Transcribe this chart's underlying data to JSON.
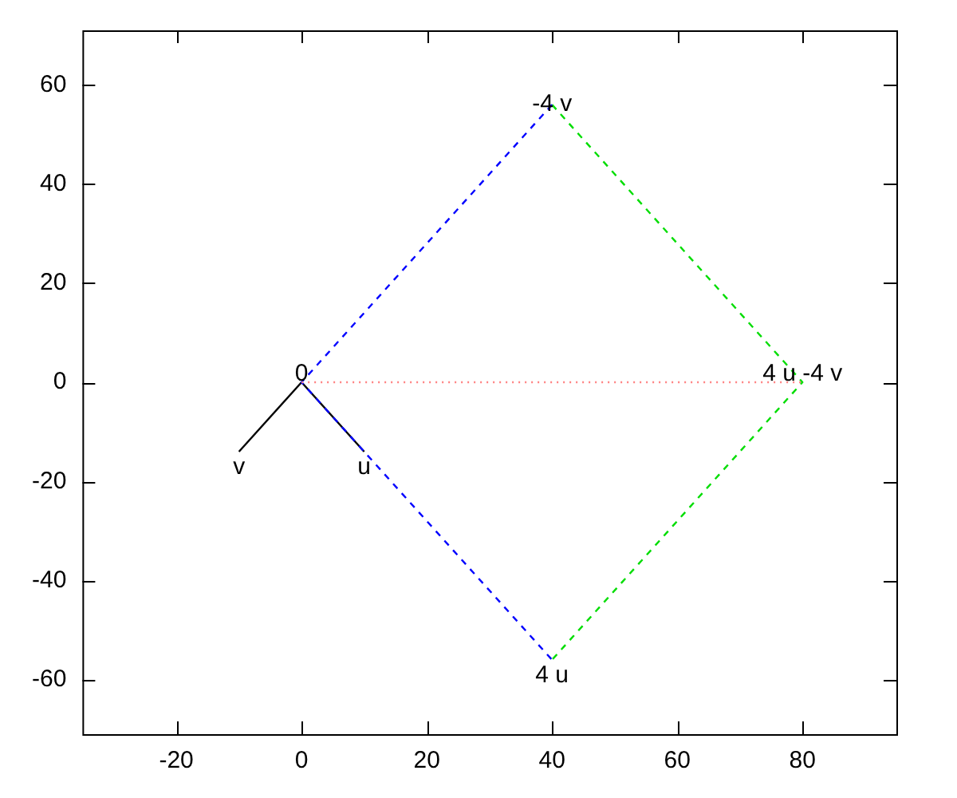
{
  "chart_data": {
    "type": "line",
    "xlim": [
      -35,
      95
    ],
    "ylim": [
      -71,
      71
    ],
    "xticks": [
      -20,
      0,
      20,
      40,
      60,
      80
    ],
    "yticks": [
      -60,
      -40,
      -20,
      0,
      20,
      40,
      60
    ],
    "grid": false,
    "legend": false,
    "marker": "none",
    "series": [
      {
        "x": [
          0,
          80
        ],
        "values": [
          0,
          0
        ],
        "color": "#ff8080",
        "line_style": "dotted"
      },
      {
        "x": [
          40,
          0,
          40
        ],
        "values": [
          56,
          0,
          -56
        ],
        "color": "#0000ff",
        "line_style": "dashed"
      },
      {
        "x": [
          40,
          80,
          40
        ],
        "values": [
          56,
          0,
          -56
        ],
        "color": "#00dd00",
        "line_style": "dashed"
      },
      {
        "x": [
          0,
          10
        ],
        "values": [
          0,
          -14
        ],
        "color": "#000000",
        "line_style": "solid"
      },
      {
        "x": [
          0,
          -10
        ],
        "values": [
          0,
          -14
        ],
        "color": "#000000",
        "line_style": "solid"
      }
    ],
    "annotations": [
      {
        "text": "0",
        "x": 0,
        "y": 0
      },
      {
        "text": "v",
        "x": -10,
        "y": -14
      },
      {
        "text": "u",
        "x": 10,
        "y": -14
      },
      {
        "text": "-4 v",
        "x": 40,
        "y": 56
      },
      {
        "text": "4 u",
        "x": 40,
        "y": -56
      },
      {
        "text": "4 u -4 v",
        "x": 80,
        "y": 0
      }
    ]
  }
}
